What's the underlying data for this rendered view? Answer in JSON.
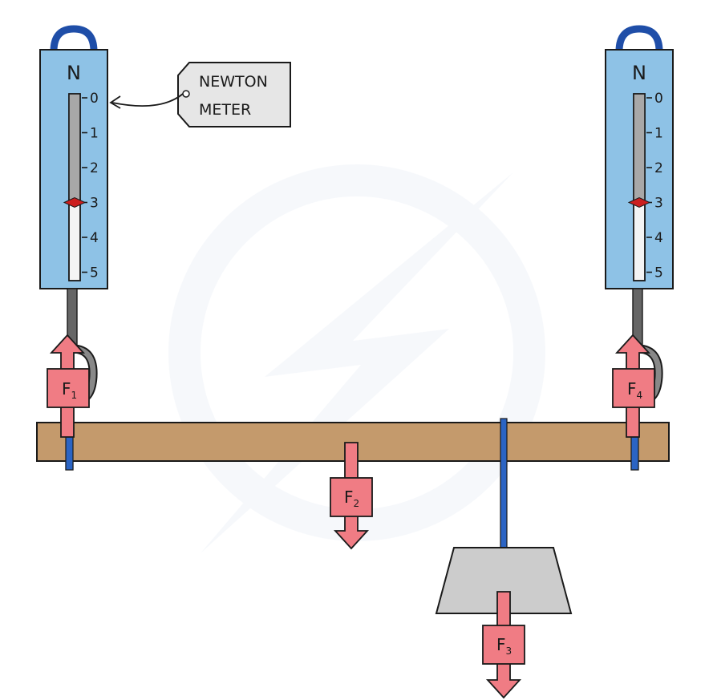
{
  "meters": [
    {
      "id": "left",
      "unit": "N",
      "scale": [
        "0",
        "1",
        "2",
        "3",
        "4",
        "5"
      ],
      "reading": 3
    },
    {
      "id": "right",
      "unit": "N",
      "scale": [
        "0",
        "1",
        "2",
        "3",
        "4",
        "5"
      ],
      "reading": 3
    }
  ],
  "callout": {
    "line1": "NEWTON",
    "line2": "METER"
  },
  "forces": [
    {
      "id": "F1",
      "base": "F",
      "sub": "1",
      "direction": "up"
    },
    {
      "id": "F2",
      "base": "F",
      "sub": "2",
      "direction": "down"
    },
    {
      "id": "F3",
      "base": "F",
      "sub": "3",
      "direction": "down"
    },
    {
      "id": "F4",
      "base": "F",
      "sub": "4",
      "direction": "up"
    }
  ],
  "colors": {
    "meter_body": "#8ec2e6",
    "meter_ring": "#1f4ea8",
    "tube_fill": "#a8a8a8",
    "tube_empty": "#f4f4f4",
    "pointer": "#cc1f1f",
    "beam": "#c49a6c",
    "rod": "#2b64c4",
    "hook": "#555555",
    "force_arrow": "#f07c84",
    "weight": "#cccccc",
    "callout_bg": "#e6e6e6"
  }
}
